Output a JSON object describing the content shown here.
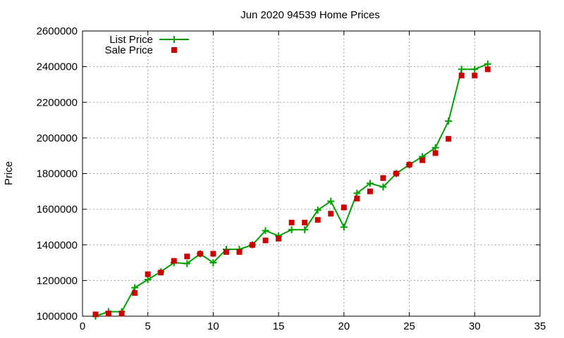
{
  "chart_data": {
    "type": "line",
    "title": "Jun 2020 94539 Home Prices",
    "xlabel": "",
    "ylabel": "Price",
    "xlim": [
      0,
      35
    ],
    "ylim": [
      1000000,
      2600000
    ],
    "xticks": [
      0,
      5,
      10,
      15,
      20,
      25,
      30,
      35
    ],
    "yticks": [
      1000000,
      1200000,
      1400000,
      1600000,
      1800000,
      2000000,
      2200000,
      2400000,
      2600000
    ],
    "grid": true,
    "legend_position": "top-left",
    "series": [
      {
        "name": "List Price",
        "style": "line-plus",
        "color": "#00a000",
        "x": [
          1,
          2,
          3,
          4,
          5,
          6,
          7,
          8,
          9,
          10,
          11,
          12,
          13,
          14,
          15,
          16,
          17,
          18,
          19,
          20,
          21,
          22,
          23,
          24,
          25,
          26,
          27,
          28,
          29,
          30,
          31
        ],
        "values": [
          1000000,
          1025000,
          1025000,
          1160000,
          1205000,
          1250000,
          1300000,
          1295000,
          1350000,
          1300000,
          1375000,
          1375000,
          1400000,
          1480000,
          1450000,
          1485000,
          1485000,
          1595000,
          1645000,
          1500000,
          1690000,
          1745000,
          1725000,
          1800000,
          1850000,
          1895000,
          1945000,
          2095000,
          2385000,
          2385000,
          2415000
        ]
      },
      {
        "name": "Sale Price",
        "style": "square-points",
        "color": "#cc0000",
        "x": [
          1,
          2,
          3,
          4,
          5,
          6,
          7,
          8,
          9,
          10,
          11,
          12,
          13,
          14,
          15,
          16,
          17,
          18,
          19,
          20,
          21,
          22,
          23,
          24,
          25,
          26,
          27,
          28,
          29,
          30,
          31
        ],
        "values": [
          1010000,
          1015000,
          1015000,
          1130000,
          1235000,
          1245000,
          1310000,
          1335000,
          1350000,
          1350000,
          1360000,
          1360000,
          1400000,
          1425000,
          1435000,
          1525000,
          1525000,
          1540000,
          1575000,
          1610000,
          1660000,
          1700000,
          1775000,
          1800000,
          1850000,
          1875000,
          1915000,
          1995000,
          2350000,
          2350000,
          2385000
        ]
      }
    ]
  }
}
